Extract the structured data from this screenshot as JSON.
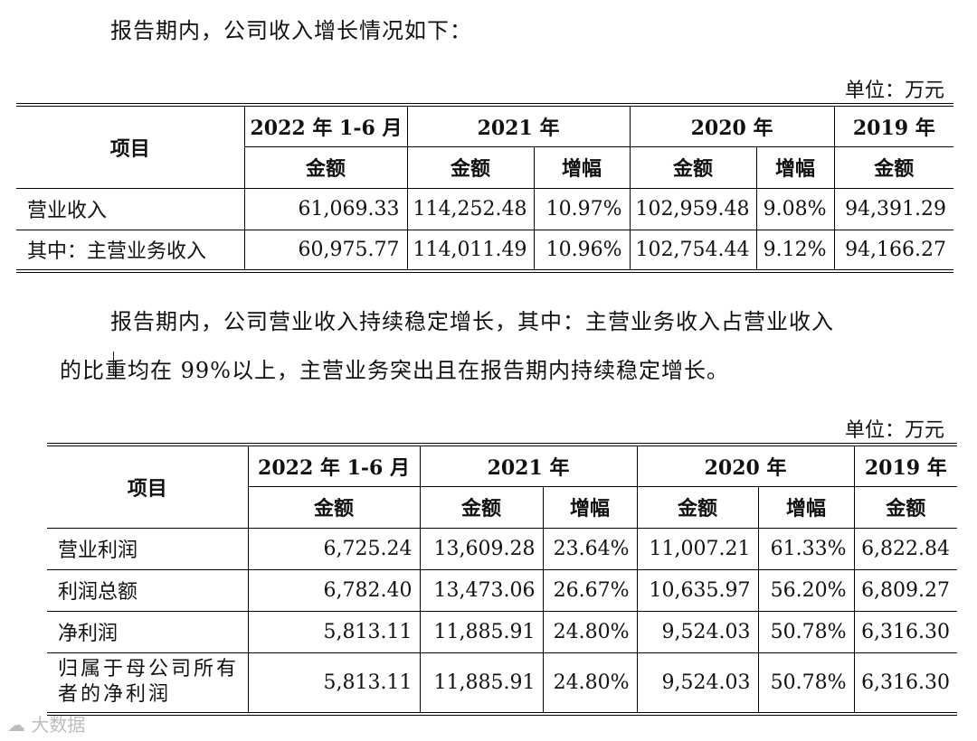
{
  "intro": "报告期内，公司收入增长情况如下：",
  "unit_label": "单位：万元",
  "table1": {
    "item_header": "项目",
    "periods": [
      "2022 年 1-6 月",
      "2021 年",
      "2020 年",
      "2019 年"
    ],
    "amount_label": "金额",
    "growth_label": "增幅",
    "rows": [
      {
        "label": "营业收入",
        "v2022h1": "61,069.33",
        "v2021": "114,252.48",
        "g2021": "10.97%",
        "v2020": "102,959.48",
        "g2020": "9.08%",
        "v2019": "94,391.29"
      },
      {
        "label": "其中：主营业务收入",
        "v2022h1": "60,975.77",
        "v2021": "114,011.49",
        "g2021": "10.96%",
        "v2020": "102,754.44",
        "g2020": "9.12%",
        "v2019": "94,166.27"
      }
    ]
  },
  "paragraph": {
    "line1": "报告期内，公司营业收入持续稳定增长，其中：主营业务收入占营业收入",
    "line2": "的比重均在 99%以上，主营业务突出且在报告期内持续稳定增长。"
  },
  "table2": {
    "item_header": "项目",
    "periods": [
      "2022 年 1-6 月",
      "2021 年",
      "2020 年",
      "2019 年"
    ],
    "amount_label": "金额",
    "growth_label": "增幅",
    "rows": [
      {
        "label": "营业利润",
        "v2022h1": "6,725.24",
        "v2021": "13,609.28",
        "g2021": "23.64%",
        "v2020": "11,007.21",
        "g2020": "61.33%",
        "v2019": "6,822.84"
      },
      {
        "label": "利润总额",
        "v2022h1": "6,782.40",
        "v2021": "13,473.06",
        "g2021": "26.67%",
        "v2020": "10,635.97",
        "g2020": "56.20%",
        "v2019": "6,809.27"
      },
      {
        "label": "净利润",
        "v2022h1": "5,813.11",
        "v2021": "11,885.91",
        "g2021": "24.80%",
        "v2020": "9,524.03",
        "g2020": "50.78%",
        "v2019": "6,316.30"
      },
      {
        "label": "归属于母公司所有者的净利润",
        "v2022h1": "5,813.11",
        "v2021": "11,885.91",
        "g2021": "24.80%",
        "v2020": "9,524.03",
        "g2020": "50.78%",
        "v2019": "6,316.30"
      }
    ]
  },
  "watermark": "大数据"
}
